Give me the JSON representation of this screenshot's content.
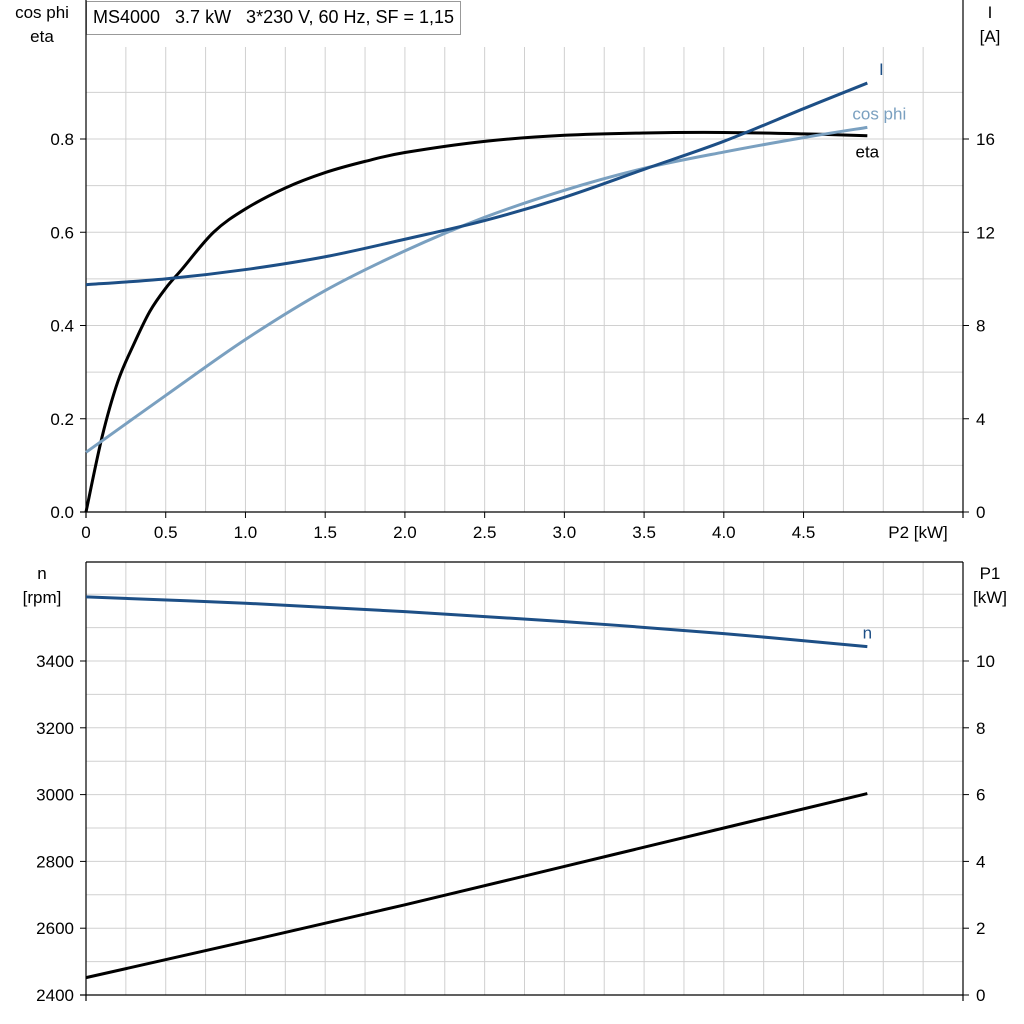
{
  "title": "MS4000   3.7 kW   3*230 V, 60 Hz, SF = 1,15",
  "chart_data": [
    {
      "type": "line",
      "xlabel": "P2 [kW]",
      "xlim": [
        0,
        5.5
      ],
      "x_ticks": [
        "0",
        "0.5",
        "1.0",
        "1.5",
        "2.0",
        "2.5",
        "3.0",
        "3.5",
        "4.0",
        "4.5"
      ],
      "y_left": {
        "label_lines": [
          "cos phi",
          "eta"
        ],
        "lim": [
          0,
          1.0
        ],
        "ticks": [
          "0.0",
          "0.2",
          "0.4",
          "0.6",
          "0.8"
        ]
      },
      "y_right": {
        "label_lines": [
          "I",
          "[A]"
        ],
        "lim": [
          0,
          20
        ],
        "ticks": [
          "0",
          "4",
          "8",
          "12",
          "16"
        ]
      },
      "grid": true,
      "series": [
        {
          "name": "eta",
          "axis": "left",
          "color": "#000000",
          "x": [
            0,
            0.1,
            0.2,
            0.3,
            0.4,
            0.5,
            0.6,
            0.8,
            1.0,
            1.25,
            1.5,
            1.75,
            2.0,
            2.5,
            3.0,
            3.5,
            4.0,
            4.5,
            4.9
          ],
          "y": [
            0.0,
            0.16,
            0.28,
            0.36,
            0.43,
            0.48,
            0.52,
            0.6,
            0.65,
            0.695,
            0.728,
            0.752,
            0.771,
            0.795,
            0.808,
            0.813,
            0.814,
            0.811,
            0.807
          ]
        },
        {
          "name": "cos phi",
          "axis": "left",
          "color": "#7aa0c0",
          "x": [
            0,
            0.5,
            1.0,
            1.5,
            2.0,
            2.5,
            3.0,
            3.5,
            4.0,
            4.5,
            4.9
          ],
          "y": [
            0.128,
            0.25,
            0.37,
            0.475,
            0.56,
            0.632,
            0.69,
            0.737,
            0.772,
            0.803,
            0.825
          ]
        },
        {
          "name": "I",
          "axis": "right",
          "color": "#1d4f86",
          "x": [
            0,
            0.5,
            1.0,
            1.5,
            2.0,
            2.5,
            3.0,
            3.5,
            4.0,
            4.5,
            4.9
          ],
          "y": [
            9.75,
            10.0,
            10.4,
            10.95,
            11.7,
            12.5,
            13.5,
            14.7,
            15.9,
            17.3,
            18.4
          ]
        }
      ]
    },
    {
      "type": "line",
      "xlim": [
        0,
        5.5
      ],
      "y_left": {
        "label_lines": [
          "n",
          "[rpm]"
        ],
        "lim": [
          2400,
          3600
        ],
        "ticks": [
          "2400",
          "2600",
          "2800",
          "3000",
          "3200",
          "3400"
        ]
      },
      "y_right": {
        "label_lines": [
          "P1",
          "[kW]"
        ],
        "lim": [
          0,
          12
        ],
        "ticks": [
          "0",
          "2",
          "4",
          "6",
          "8",
          "10"
        ]
      },
      "grid": true,
      "series": [
        {
          "name": "n",
          "axis": "left",
          "color": "#1d4f86",
          "x": [
            0,
            1.0,
            2.0,
            3.0,
            4.0,
            4.9
          ],
          "y": [
            3592,
            3573,
            3548,
            3518,
            3482,
            3443
          ]
        },
        {
          "name": "",
          "axis": "right",
          "color": "#000000",
          "x": [
            0,
            1.0,
            2.0,
            3.0,
            4.0,
            4.9
          ],
          "y": [
            0.52,
            1.6,
            2.7,
            3.85,
            5.0,
            6.03
          ]
        }
      ]
    }
  ]
}
